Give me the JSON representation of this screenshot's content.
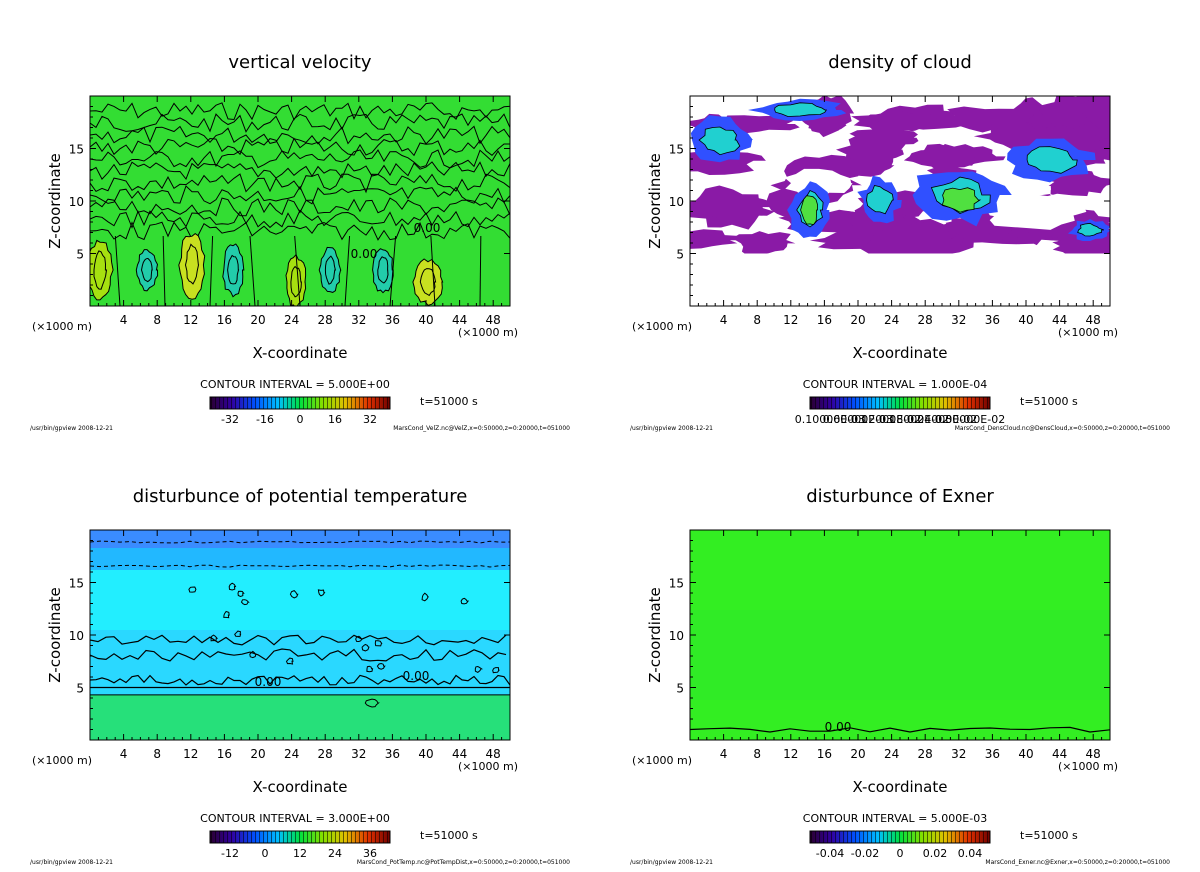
{
  "chart_data": [
    {
      "type": "heatmap",
      "title": "vertical velocity",
      "xlabel": "X-coordinate",
      "ylabel": "Z-coordinate",
      "x_unit_left": "(×1000 m)",
      "x_unit_right": "(×1000 m)",
      "xticks": [
        "4",
        "8",
        "12",
        "16",
        "20",
        "24",
        "28",
        "32",
        "36",
        "40",
        "44",
        "48"
      ],
      "yticks": [
        "5",
        "10",
        "15"
      ],
      "xlim": [
        0,
        50
      ],
      "ylim": [
        0,
        20
      ],
      "contour_interval": "CONTOUR INTERVAL = 5.000E+00",
      "time": "t=51000 s",
      "colorbar_ticks": [
        "-32",
        "-16",
        "0",
        "16",
        "32"
      ],
      "contour_labels": [
        "0.00",
        "0.00"
      ],
      "footer_left": "/usr/bin/gpview   2008-12-21",
      "footer_right": "MarsCond_VelZ.nc@VelZ,x=0:50000,z=0:20000,t=051000",
      "background_color": "#33dd33"
    },
    {
      "type": "heatmap",
      "title": "density of cloud",
      "xlabel": "X-coordinate",
      "ylabel": "Z-coordinate",
      "x_unit_left": "(×1000 m)",
      "x_unit_right": "(×1000 m)",
      "xticks": [
        "4",
        "8",
        "12",
        "16",
        "20",
        "24",
        "28",
        "32",
        "36",
        "40",
        "44",
        "48"
      ],
      "yticks": [
        "5",
        "10",
        "15"
      ],
      "xlim": [
        0,
        50
      ],
      "ylim": [
        0,
        20
      ],
      "contour_interval": "CONTOUR INTERVAL = 1.000E-04",
      "time": "t=51000 s",
      "colorbar_ticks": [
        "0.10000E-03",
        "0.60000E-03",
        "0.12000E-02",
        "0.18000E-02",
        "0.24000E-02",
        "0.30000E-02"
      ],
      "footer_left": "/usr/bin/gpview   2008-12-21",
      "footer_right": "MarsCond_DensCloud.nc@DensCloud,x=0:50000,z=0:20000,t=051000",
      "background_color": "#ffffff"
    },
    {
      "type": "heatmap",
      "title": "disturbunce of potential temperature",
      "xlabel": "X-coordinate",
      "ylabel": "Z-coordinate",
      "x_unit_left": "(×1000 m)",
      "x_unit_right": "(×1000 m)",
      "xticks": [
        "4",
        "8",
        "12",
        "16",
        "20",
        "24",
        "28",
        "32",
        "36",
        "40",
        "44",
        "48"
      ],
      "yticks": [
        "5",
        "10",
        "15"
      ],
      "xlim": [
        0,
        50
      ],
      "ylim": [
        0,
        20
      ],
      "contour_interval": "CONTOUR INTERVAL = 3.000E+00",
      "time": "t=51000 s",
      "colorbar_ticks": [
        "-12",
        "0",
        "12",
        "24",
        "36"
      ],
      "contour_labels": [
        "0.00",
        "0.00"
      ],
      "footer_left": "/usr/bin/gpview   2008-12-21",
      "footer_right": "MarsCond_PotTemp.nc@PotTempDist,x=0:50000,z=0:20000,t=051000",
      "background_color": "#22eeff"
    },
    {
      "type": "heatmap",
      "title": "disturbunce of Exner",
      "xlabel": "X-coordinate",
      "ylabel": "Z-coordinate",
      "x_unit_left": "(×1000 m)",
      "x_unit_right": "(×1000 m)",
      "xticks": [
        "4",
        "8",
        "12",
        "16",
        "20",
        "24",
        "28",
        "32",
        "36",
        "40",
        "44",
        "48"
      ],
      "yticks": [
        "5",
        "10",
        "15"
      ],
      "xlim": [
        0,
        50
      ],
      "ylim": [
        0,
        20
      ],
      "contour_interval": "CONTOUR INTERVAL = 5.000E-03",
      "time": "t=51000 s",
      "colorbar_ticks": [
        "-0.04",
        "-0.02",
        "0",
        "0.02",
        "0.04"
      ],
      "contour_labels": [
        "0.00"
      ],
      "footer_left": "/usr/bin/gpview   2008-12-21",
      "footer_right": "MarsCond_Exner.nc@Exner,x=0:50000,z=0:20000,t=051000",
      "background_color": "#33ee22"
    }
  ]
}
